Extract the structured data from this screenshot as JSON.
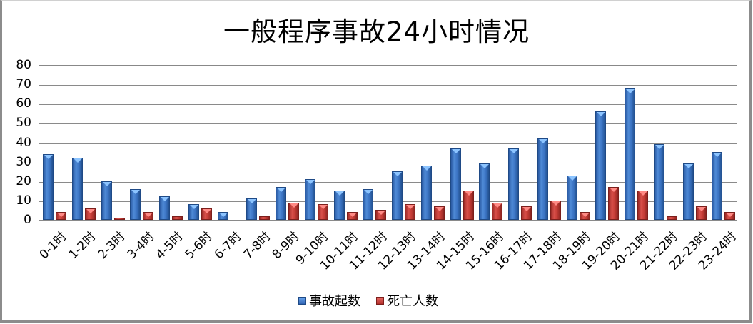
{
  "chart_data": {
    "type": "bar",
    "title": "一般程序事故24小时情况",
    "xlabel": "",
    "ylabel": "",
    "ylim": [
      0,
      80
    ],
    "yticks": [
      0,
      10,
      20,
      30,
      40,
      50,
      60,
      70,
      80
    ],
    "grid": true,
    "legend_position": "bottom",
    "categories": [
      "0-1时",
      "1-2时",
      "2-3时",
      "3-4时",
      "4-5时",
      "5-6时",
      "6-7时",
      "7-8时",
      "8-9时",
      "9-10时",
      "10-11时",
      "11-12时",
      "12-13时",
      "13-14时",
      "14-15时",
      "15-16时",
      "16-17时",
      "17-18时",
      "18-19时",
      "19-20时",
      "20-21时",
      "21-22时",
      "22-23时",
      "23-24时"
    ],
    "series": [
      {
        "name": "事故起数",
        "color": "#3b74c4",
        "values": [
          34,
          32,
          20,
          16,
          12,
          8,
          4,
          11,
          17,
          21,
          15,
          16,
          25,
          28,
          37,
          29,
          37,
          42,
          23,
          56,
          68,
          39,
          29,
          35
        ]
      },
      {
        "name": "死亡人数",
        "color": "#c43b35",
        "values": [
          4,
          6,
          1,
          4,
          2,
          6,
          0,
          2,
          9,
          8,
          4,
          5,
          8,
          7,
          15,
          9,
          7,
          10,
          4,
          17,
          15,
          2,
          7,
          4
        ]
      }
    ]
  },
  "legend": {
    "items": [
      {
        "label": "事故起数",
        "color": "#3b74c4"
      },
      {
        "label": "死亡人数",
        "color": "#c43b35"
      }
    ]
  }
}
